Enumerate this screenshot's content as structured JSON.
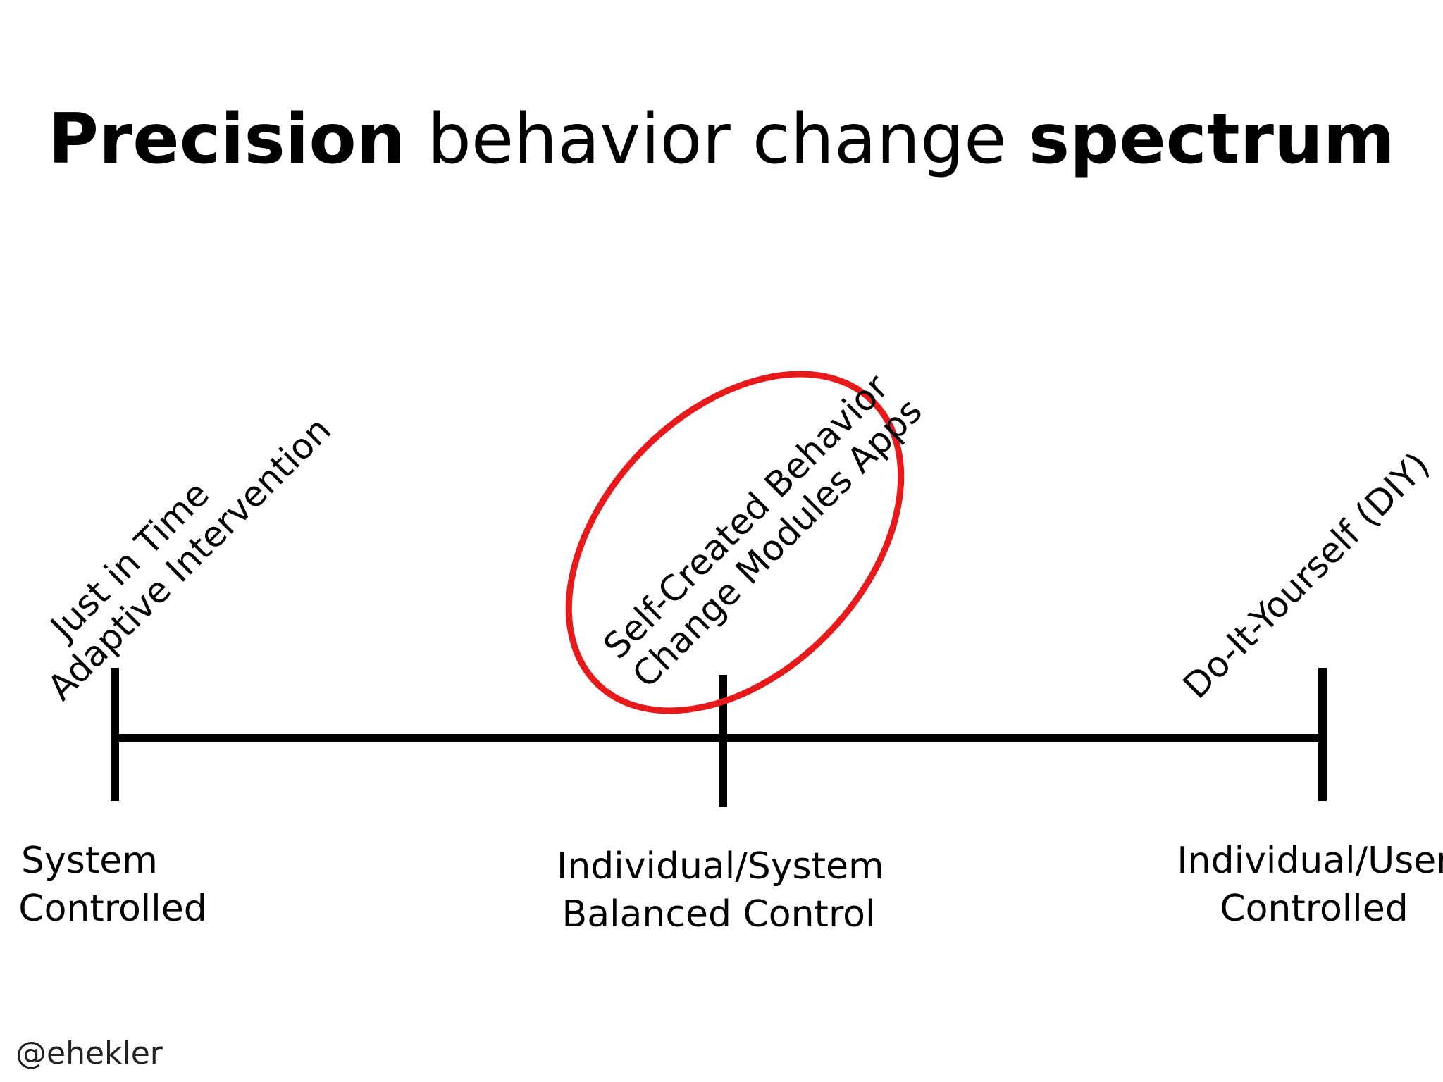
{
  "title": {
    "part1": "Precision",
    "part2": " behavior change ",
    "part3": "spectrum"
  },
  "colors": {
    "line": "#000000",
    "highlight": "#e8191b",
    "text": "#000000"
  },
  "above_labels": [
    {
      "line1": "Just in Time",
      "line2": "Adaptive Intervention"
    },
    {
      "line1": "Self-Created Behavior",
      "line2": "Change Modules Apps"
    },
    {
      "line1": "Do-It-Yourself (DIY)",
      "line2": ""
    }
  ],
  "below_labels": [
    {
      "line1": "System",
      "line2": "Controlled"
    },
    {
      "line1": "Individual/System",
      "line2": "Balanced Control"
    },
    {
      "line1": "Individual/User",
      "line2": "Controlled"
    }
  ],
  "highlighted_item": "Self-Created Behavior Change Modules Apps",
  "handle": "@ehekler"
}
